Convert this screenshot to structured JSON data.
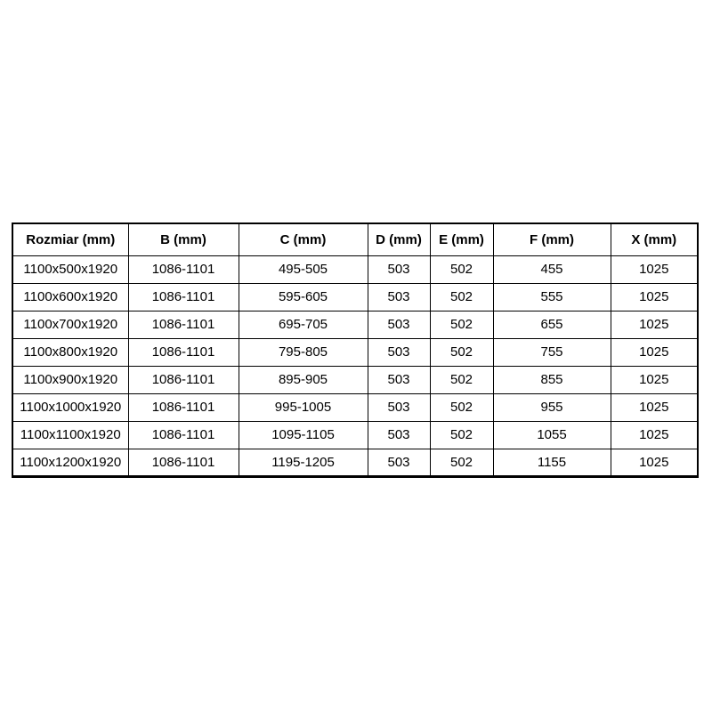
{
  "chart_data": {
    "type": "table",
    "columns": [
      "Rozmiar (mm)",
      "B (mm)",
      "C (mm)",
      "D (mm)",
      "E (mm)",
      "F (mm)",
      "X (mm)"
    ],
    "rows": [
      [
        "1100x500x1920",
        "1086-1101",
        "495-505",
        "503",
        "502",
        "455",
        "1025"
      ],
      [
        "1100x600x1920",
        "1086-1101",
        "595-605",
        "503",
        "502",
        "555",
        "1025"
      ],
      [
        "1100x700x1920",
        "1086-1101",
        "695-705",
        "503",
        "502",
        "655",
        "1025"
      ],
      [
        "1100x800x1920",
        "1086-1101",
        "795-805",
        "503",
        "502",
        "755",
        "1025"
      ],
      [
        "1100x900x1920",
        "1086-1101",
        "895-905",
        "503",
        "502",
        "855",
        "1025"
      ],
      [
        "1100x1000x1920",
        "1086-1101",
        "995-1005",
        "503",
        "502",
        "955",
        "1025"
      ],
      [
        "1100x1100x1920",
        "1086-1101",
        "1095-1105",
        "503",
        "502",
        "1055",
        "1025"
      ],
      [
        "1100x1200x1920",
        "1086-1101",
        "1195-1205",
        "503",
        "502",
        "1155",
        "1025"
      ]
    ],
    "layout": {
      "grid": true,
      "header_bold": true,
      "border_color": "#000000",
      "background": "#ffffff"
    }
  },
  "colors": {
    "border": "#000000",
    "text": "#000000",
    "background": "#ffffff"
  }
}
